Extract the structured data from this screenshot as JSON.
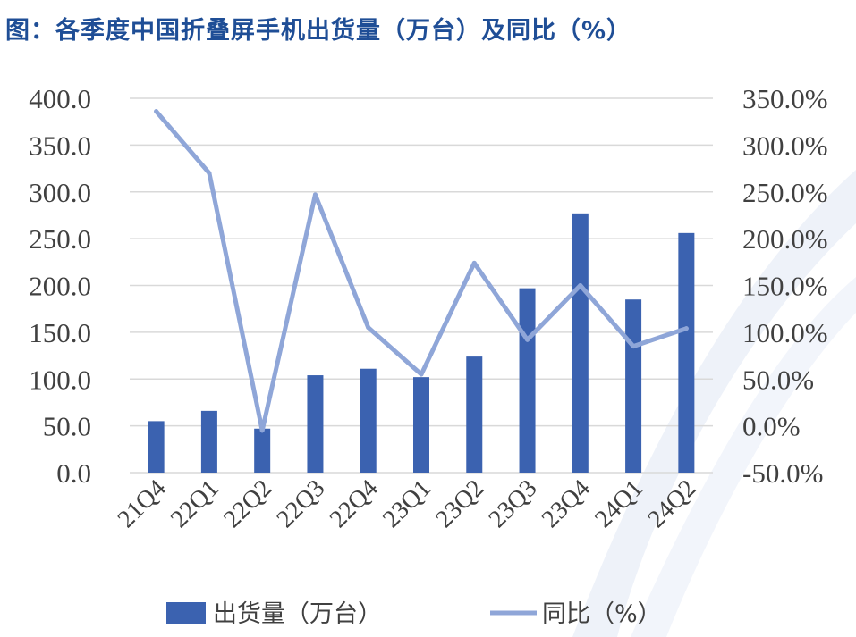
{
  "chart_data": {
    "type": "bar+line",
    "title": "图：各季度中国折叠屏手机出货量（万台）及同比（%）",
    "categories": [
      "21Q4",
      "22Q1",
      "22Q2",
      "22Q3",
      "22Q4",
      "23Q1",
      "23Q2",
      "23Q3",
      "23Q4",
      "24Q1",
      "24Q2"
    ],
    "series": [
      {
        "name": "出货量（万台）",
        "type": "bar",
        "axis": "left",
        "color": "#3b62b0",
        "values": [
          55.0,
          66.0,
          47.0,
          104.0,
          111.0,
          102.0,
          124.0,
          197.0,
          277.0,
          185.0,
          256.0
        ]
      },
      {
        "name": "同比（%）",
        "type": "line",
        "axis": "right",
        "color": "#8fa6d8",
        "values": [
          336.0,
          270.0,
          -5.0,
          247.0,
          105.0,
          55.0,
          174.0,
          92.0,
          150.0,
          85.0,
          104.0
        ]
      }
    ],
    "y_left": {
      "min": 0,
      "max": 400,
      "step": 50,
      "ticks": [
        "0.0",
        "50.0",
        "100.0",
        "150.0",
        "200.0",
        "250.0",
        "300.0",
        "350.0",
        "400.0"
      ]
    },
    "y_right": {
      "min": -50,
      "max": 350,
      "step": 50,
      "ticks": [
        "-50.0%",
        "0.0%",
        "50.0%",
        "100.0%",
        "150.0%",
        "200.0%",
        "250.0%",
        "300.0%",
        "350.0%"
      ]
    },
    "grid": true,
    "legend_position": "bottom",
    "xlabel": "",
    "ylabel": ""
  }
}
